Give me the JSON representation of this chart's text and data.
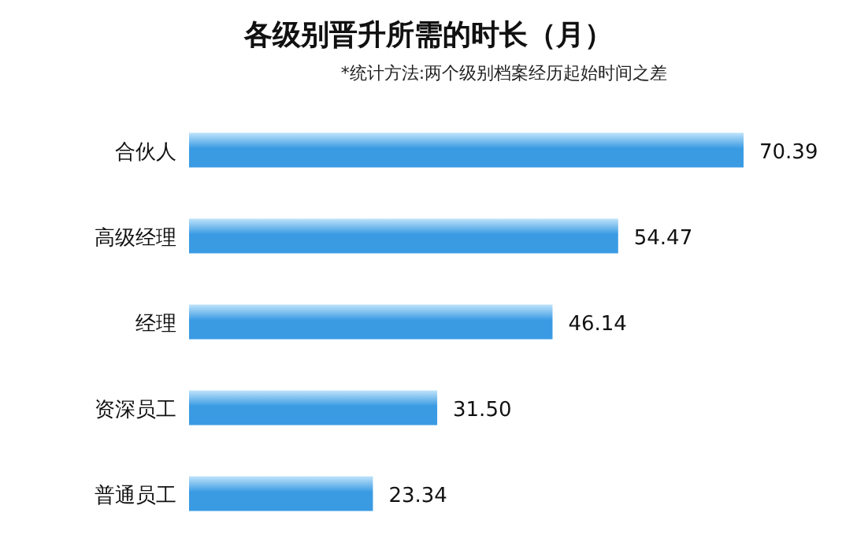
{
  "chart_data": {
    "type": "bar",
    "orientation": "horizontal",
    "title": "各级别晋升所需的时长（月）",
    "annotations": [
      "*统计方法:两个级别档案经历起始时间之差"
    ],
    "categories": [
      "合伙人",
      "高级经理",
      "经理",
      "资深员工",
      "普通员工"
    ],
    "values": [
      70.39,
      54.47,
      46.14,
      31.5,
      23.34
    ],
    "value_labels": [
      "70.39",
      "54.47",
      "46.14",
      "31.50",
      "23.34"
    ],
    "color": "#3a9be3",
    "xlim": [
      0,
      70.39
    ],
    "tick_labels": false
  }
}
